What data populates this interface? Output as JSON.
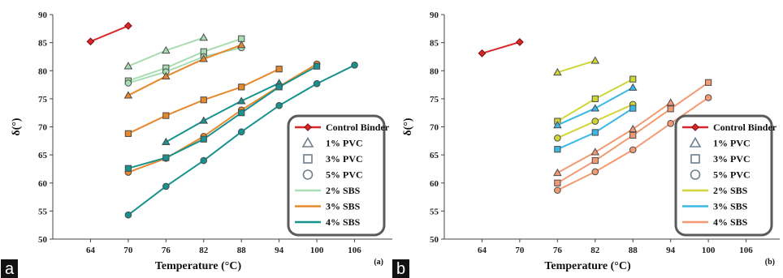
{
  "figure": {
    "panels": [
      {
        "letter": "a",
        "sub_mark": "(a)",
        "xlabel": "Temperature (°C)",
        "ylabel": "δ(°)"
      },
      {
        "letter": "b",
        "sub_mark": "(b)",
        "xlabel": "Temperature (°C)",
        "ylabel": "δ(°)"
      }
    ],
    "legend": [
      {
        "label": "Control Binder",
        "kind": "line-marker",
        "marker": "diamond",
        "color": "#d9262b"
      },
      {
        "label": "1% PVC",
        "kind": "marker",
        "marker": "triangle",
        "color": "#6e7f8c"
      },
      {
        "label": "3% PVC",
        "kind": "marker",
        "marker": "square",
        "color": "#6e7f8c"
      },
      {
        "label": "5% PVC",
        "kind": "marker",
        "marker": "circle",
        "color": "#6e7f8c"
      },
      {
        "label": "2% SBS",
        "kind": "line",
        "marker": "none"
      },
      {
        "label": "3% SBS",
        "kind": "line",
        "marker": "none"
      },
      {
        "label": "4% SBS",
        "kind": "line",
        "marker": "none"
      }
    ],
    "legend_colors_a": [
      "#d9262b",
      "#6e7f8c",
      "#6e7f8c",
      "#6e7f8c",
      "#a8dcb4",
      "#e8882c",
      "#17928e"
    ],
    "legend_colors_b": [
      "#d9262b",
      "#6e7f8c",
      "#6e7f8c",
      "#6e7f8c",
      "#cfd636",
      "#3ab8e6",
      "#f49a72"
    ]
  },
  "chart_data": [
    {
      "type": "line",
      "panel": "a",
      "xlabel": "Temperature (°C)",
      "ylabel": "δ(°)",
      "xlim": [
        58,
        112
      ],
      "ylim": [
        50,
        90
      ],
      "xticks": [
        64,
        70,
        76,
        82,
        88,
        94,
        100,
        106
      ],
      "yticks": [
        50,
        55,
        60,
        65,
        70,
        75,
        80,
        85,
        90
      ],
      "grid": false,
      "legend_position": "bottom-right",
      "series": [
        {
          "name": "Control Binder",
          "marker": "diamond",
          "color": "#d9262b",
          "x": [
            64,
            70
          ],
          "y": [
            85.2,
            88
          ]
        },
        {
          "name": "2% SBS",
          "marker": "triangle",
          "color": "#a8dcb4",
          "x": [
            70,
            76,
            82
          ],
          "y": [
            80.8,
            83.6,
            85.9
          ]
        },
        {
          "name": "2% SBS",
          "marker": "square",
          "color": "#a8dcb4",
          "x": [
            70,
            76,
            82,
            88
          ],
          "y": [
            78.2,
            80.5,
            83.4,
            85.7
          ]
        },
        {
          "name": "2% SBS",
          "marker": "circle",
          "color": "#a8dcb4",
          "x": [
            70,
            76,
            82,
            88
          ],
          "y": [
            77.8,
            79.8,
            82.5,
            84.1
          ]
        },
        {
          "name": "3% SBS",
          "marker": "triangle",
          "color": "#e8882c",
          "x": [
            70,
            76,
            82,
            88
          ],
          "y": [
            75.6,
            79,
            82.1,
            84.6
          ]
        },
        {
          "name": "3% SBS",
          "marker": "square",
          "color": "#e8882c",
          "x": [
            70,
            76,
            82,
            88,
            94
          ],
          "y": [
            68.8,
            72,
            74.8,
            77.1,
            80.3
          ]
        },
        {
          "name": "3% SBS",
          "marker": "circle",
          "color": "#e8882c",
          "x": [
            70,
            76,
            82,
            88,
            94,
            100
          ],
          "y": [
            61.9,
            64.4,
            68.3,
            73,
            77.2,
            81.2
          ]
        },
        {
          "name": "4% SBS",
          "marker": "triangle",
          "color": "#17928e",
          "x": [
            76,
            82,
            88,
            94
          ],
          "y": [
            67.3,
            71.1,
            74.6,
            77.8
          ]
        },
        {
          "name": "4% SBS",
          "marker": "square",
          "color": "#17928e",
          "x": [
            70,
            76,
            82,
            88,
            94,
            100
          ],
          "y": [
            62.6,
            64.5,
            67.8,
            72.5,
            77.1,
            80.8
          ]
        },
        {
          "name": "4% SBS",
          "marker": "circle",
          "color": "#17928e",
          "x": [
            70,
            76,
            82,
            88,
            94,
            100,
            106
          ],
          "y": [
            54.3,
            59.4,
            64,
            69.1,
            73.8,
            77.7,
            81
          ]
        }
      ]
    },
    {
      "type": "line",
      "panel": "b",
      "xlabel": "Temperature (°C)",
      "ylabel": "δ(°)",
      "xlim": [
        58,
        112
      ],
      "ylim": [
        50,
        90
      ],
      "xticks": [
        64,
        70,
        76,
        82,
        88,
        94,
        100,
        106
      ],
      "yticks": [
        50,
        55,
        60,
        65,
        70,
        75,
        80,
        85,
        90
      ],
      "grid": false,
      "legend_position": "bottom-right",
      "series": [
        {
          "name": "Control Binder",
          "marker": "diamond",
          "color": "#d9262b",
          "x": [
            64,
            70
          ],
          "y": [
            83.1,
            85.1
          ]
        },
        {
          "name": "2% SBS",
          "marker": "triangle",
          "color": "#cfd636",
          "x": [
            76,
            82
          ],
          "y": [
            79.7,
            81.8
          ]
        },
        {
          "name": "2% SBS",
          "marker": "square",
          "color": "#cfd636",
          "x": [
            76,
            82,
            88
          ],
          "y": [
            71,
            75,
            78.5
          ]
        },
        {
          "name": "2% SBS",
          "marker": "circle",
          "color": "#cfd636",
          "x": [
            76,
            82,
            88
          ],
          "y": [
            68,
            71,
            74
          ]
        },
        {
          "name": "3% SBS",
          "marker": "triangle",
          "color": "#3ab8e6",
          "x": [
            76,
            82,
            88
          ],
          "y": [
            70.3,
            73.3,
            77
          ]
        },
        {
          "name": "3% SBS",
          "marker": "square",
          "color": "#3ab8e6",
          "x": [
            76,
            82,
            88
          ],
          "y": [
            66,
            69,
            73.3
          ]
        },
        {
          "name": "4% SBS",
          "marker": "triangle",
          "color": "#f49a72",
          "x": [
            76,
            82,
            88,
            94
          ],
          "y": [
            61.8,
            65.5,
            69.6,
            74.3
          ]
        },
        {
          "name": "4% SBS",
          "marker": "square",
          "color": "#f49a72",
          "x": [
            76,
            82,
            88,
            94,
            100
          ],
          "y": [
            60,
            64,
            68.5,
            73.2,
            77.9
          ]
        },
        {
          "name": "4% SBS",
          "marker": "circle",
          "color": "#f49a72",
          "x": [
            76,
            82,
            88,
            94,
            100
          ],
          "y": [
            58.7,
            62,
            65.9,
            70.6,
            75.2
          ]
        }
      ]
    }
  ]
}
